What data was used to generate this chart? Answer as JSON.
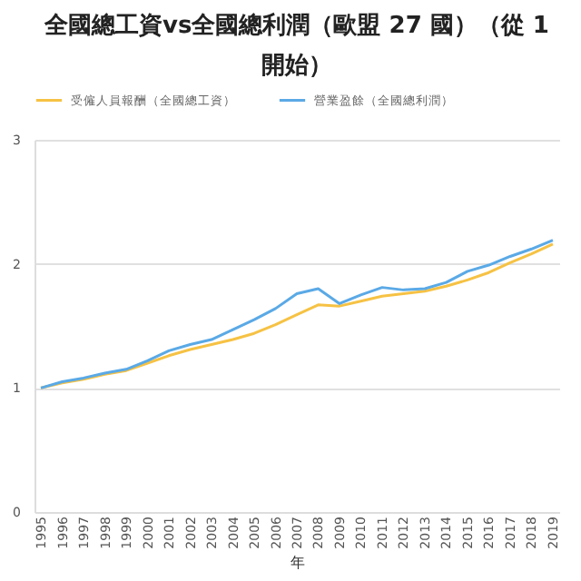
{
  "chart_data": {
    "type": "line",
    "title": "全國總工資vs全國總利潤（歐盟 27 國）（從 1開始）",
    "xlabel": "年",
    "categories": [
      "1995",
      "1996",
      "1997",
      "1998",
      "1999",
      "2000",
      "2001",
      "2002",
      "2003",
      "2004",
      "2005",
      "2006",
      "2007",
      "2008",
      "2009",
      "2010",
      "2011",
      "2012",
      "2013",
      "2014",
      "2015",
      "2016",
      "2017",
      "2018",
      "2019"
    ],
    "series": [
      {
        "name": "受僱人員報酬（全國總工資）",
        "color": "#f6c244",
        "values": [
          1.0,
          1.04,
          1.07,
          1.11,
          1.14,
          1.2,
          1.26,
          1.31,
          1.35,
          1.39,
          1.44,
          1.51,
          1.59,
          1.67,
          1.66,
          1.7,
          1.74,
          1.76,
          1.78,
          1.82,
          1.87,
          1.93,
          2.01,
          2.08,
          2.16
        ]
      },
      {
        "name": "營業盈餘（全國總利潤）",
        "color": "#5aa9e6",
        "values": [
          1.0,
          1.05,
          1.08,
          1.12,
          1.15,
          1.22,
          1.3,
          1.35,
          1.39,
          1.47,
          1.55,
          1.64,
          1.76,
          1.8,
          1.68,
          1.75,
          1.81,
          1.79,
          1.8,
          1.85,
          1.94,
          1.99,
          2.06,
          2.12,
          2.19
        ]
      }
    ],
    "ylim": [
      0,
      3
    ],
    "yticks": [
      0,
      1,
      2,
      3
    ],
    "grid": "y",
    "legend": "top",
    "marker": "none",
    "line_style": "solid"
  }
}
